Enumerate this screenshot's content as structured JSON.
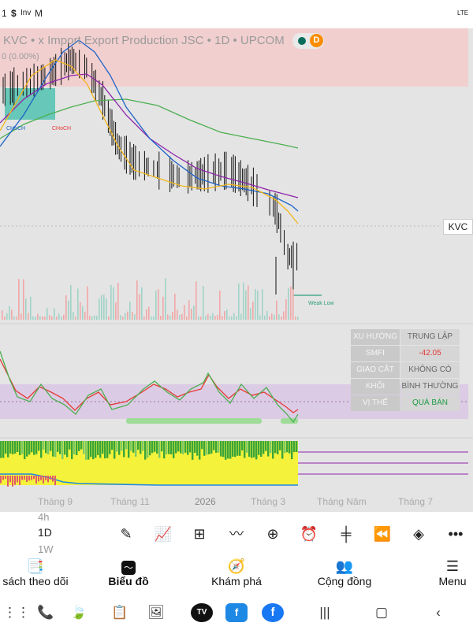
{
  "status": {
    "time": "1",
    "icon1": "$",
    "icon2": "Inv",
    "icon3": "M",
    "network": "LTE"
  },
  "chart": {
    "title": "KVC • x Import Export Production JSC • 1D • UPCOM",
    "change_text": "0 (0.00%)",
    "dot_d": "D",
    "symbol_tag": "KVC",
    "labels": {
      "choch1": "CHoCH",
      "choch2": "CHoCH",
      "weak_low": "Weak Low"
    },
    "x_axis": [
      "Tháng 9",
      "Tháng 11",
      "2026",
      "Tháng 3",
      "Tháng Năm",
      "Tháng 7"
    ]
  },
  "stats": [
    {
      "key": "XU HƯỚNG",
      "value": "TRUNG LẬP",
      "color": "#666666"
    },
    {
      "key": "SMFI",
      "value": "-42.05",
      "color": "#e53935"
    },
    {
      "key": "GIAO CẮT",
      "value": "KHÔNG CÓ",
      "color": "#666666"
    },
    {
      "key": "KHỐI LƯỢNG",
      "value": "BÌNH THƯỜNG",
      "color": "#666666"
    },
    {
      "key": "VỊ THẾ",
      "value": "QUÁ BÁN",
      "color": "#1e9c43"
    }
  ],
  "toolbar": {
    "tf_above": "4h",
    "tf_current": "1D",
    "tf_below": "1W"
  },
  "bottom_nav": {
    "watchlist": "sách theo dõi",
    "chart": "Biểu đồ",
    "explore": "Khám phá",
    "community": "Cộng đồng",
    "menu": "Menu"
  },
  "colors": {
    "accent_green": "#4caf50",
    "red_zone": "#f5c6c6",
    "purple_band": "#d9c8e3",
    "yellow": "#f5f23c"
  }
}
